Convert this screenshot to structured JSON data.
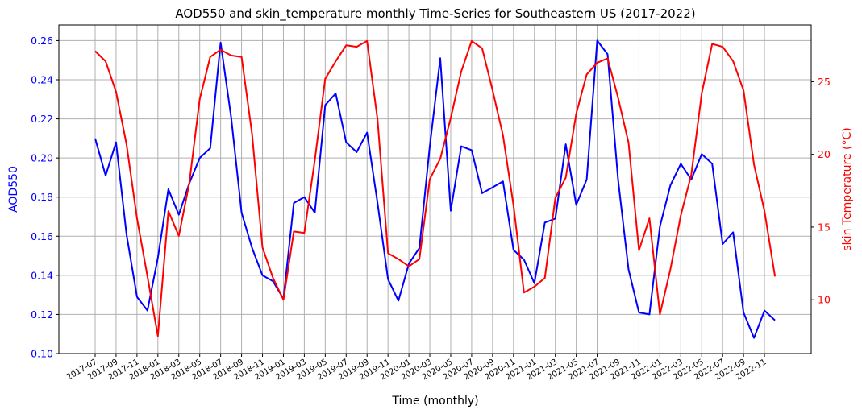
{
  "chart_data": {
    "type": "line",
    "title": "AOD550 and skin_temperature monthly Time-Series for Southeastern US (2017-2022)",
    "xlabel": "Time (monthly)",
    "ylabel_left": "AOD550",
    "ylabel_right": "skin Temperature (°C)",
    "ylim_left": [
      0.1,
      0.268
    ],
    "yticks_left": [
      "0.10",
      "0.12",
      "0.14",
      "0.16",
      "0.18",
      "0.20",
      "0.22",
      "0.24",
      "0.26"
    ],
    "ylim_right": [
      6.3,
      28.9
    ],
    "yticks_right": [
      "10",
      "15",
      "20",
      "25"
    ],
    "grid": true,
    "left_color": "#0000ff",
    "right_color": "#ff0000",
    "xticks": [
      "2017-07",
      "2017-09",
      "2017-11",
      "2018-01",
      "2018-03",
      "2018-05",
      "2018-07",
      "2018-09",
      "2018-11",
      "2019-01",
      "2019-03",
      "2019-05",
      "2019-07",
      "2019-09",
      "2019-11",
      "2020-01",
      "2020-03",
      "2020-05",
      "2020-07",
      "2020-09",
      "2020-11",
      "2021-01",
      "2021-03",
      "2021-05",
      "2021-07",
      "2021-09",
      "2021-11",
      "2022-01",
      "2022-03",
      "2022-05",
      "2022-07",
      "2022-09",
      "2022-11"
    ],
    "x": [
      "2017-07",
      "2017-08",
      "2017-09",
      "2017-10",
      "2017-11",
      "2017-12",
      "2018-01",
      "2018-02",
      "2018-03",
      "2018-04",
      "2018-05",
      "2018-06",
      "2018-07",
      "2018-08",
      "2018-09",
      "2018-10",
      "2018-11",
      "2018-12",
      "2019-01",
      "2019-02",
      "2019-03",
      "2019-04",
      "2019-05",
      "2019-06",
      "2019-07",
      "2019-08",
      "2019-09",
      "2019-10",
      "2019-11",
      "2019-12",
      "2020-01",
      "2020-02",
      "2020-03",
      "2020-04",
      "2020-05",
      "2020-06",
      "2020-07",
      "2020-08",
      "2020-09",
      "2020-10",
      "2020-11",
      "2020-12",
      "2021-01",
      "2021-02",
      "2021-03",
      "2021-04",
      "2021-05",
      "2021-06",
      "2021-07",
      "2021-08",
      "2021-09",
      "2021-10",
      "2021-11",
      "2021-12",
      "2022-01",
      "2022-02",
      "2022-03",
      "2022-04",
      "2022-05",
      "2022-06",
      "2022-07",
      "2022-08",
      "2022-09",
      "2022-10",
      "2022-11",
      "2022-12"
    ],
    "series": [
      {
        "axis": "left",
        "color": "#0000ff",
        "values": [
          0.21,
          0.191,
          0.208,
          0.161,
          0.129,
          0.122,
          0.149,
          0.184,
          0.171,
          0.187,
          0.2,
          0.205,
          0.259,
          0.221,
          0.172,
          0.154,
          0.14,
          0.137,
          0.128,
          0.177,
          0.18,
          0.172,
          0.227,
          0.233,
          0.208,
          0.203,
          0.213,
          0.177,
          0.138,
          0.127,
          0.146,
          0.154,
          0.206,
          0.251,
          0.173,
          0.206,
          0.204,
          0.182,
          0.185,
          0.188,
          0.153,
          0.148,
          0.136,
          0.167,
          0.169,
          0.207,
          0.176,
          0.189,
          0.26,
          0.253,
          0.189,
          0.143,
          0.121,
          0.12,
          0.165,
          0.186,
          0.197,
          0.189,
          0.202,
          0.197,
          0.156,
          0.162,
          0.121,
          0.108,
          0.122,
          0.117
        ]
      },
      {
        "axis": "right",
        "color": "#ff0000",
        "values": [
          27.1,
          26.4,
          24.3,
          20.7,
          15.6,
          11.6,
          7.5,
          16.1,
          14.4,
          18.0,
          23.8,
          26.7,
          27.2,
          26.8,
          26.7,
          21.4,
          13.6,
          11.5,
          10.0,
          14.7,
          14.6,
          19.6,
          25.2,
          26.4,
          27.5,
          27.4,
          27.8,
          22.4,
          13.2,
          12.8,
          12.3,
          12.8,
          18.3,
          19.7,
          22.5,
          25.7,
          27.8,
          27.3,
          24.4,
          21.3,
          16.5,
          10.5,
          10.9,
          11.5,
          17.0,
          18.4,
          22.8,
          25.5,
          26.3,
          26.6,
          23.9,
          20.8,
          13.4,
          15.6,
          9.0,
          12.1,
          15.8,
          18.6,
          24.2,
          27.6,
          27.4,
          26.4,
          24.4,
          19.3,
          16.1,
          11.6
        ]
      }
    ]
  }
}
